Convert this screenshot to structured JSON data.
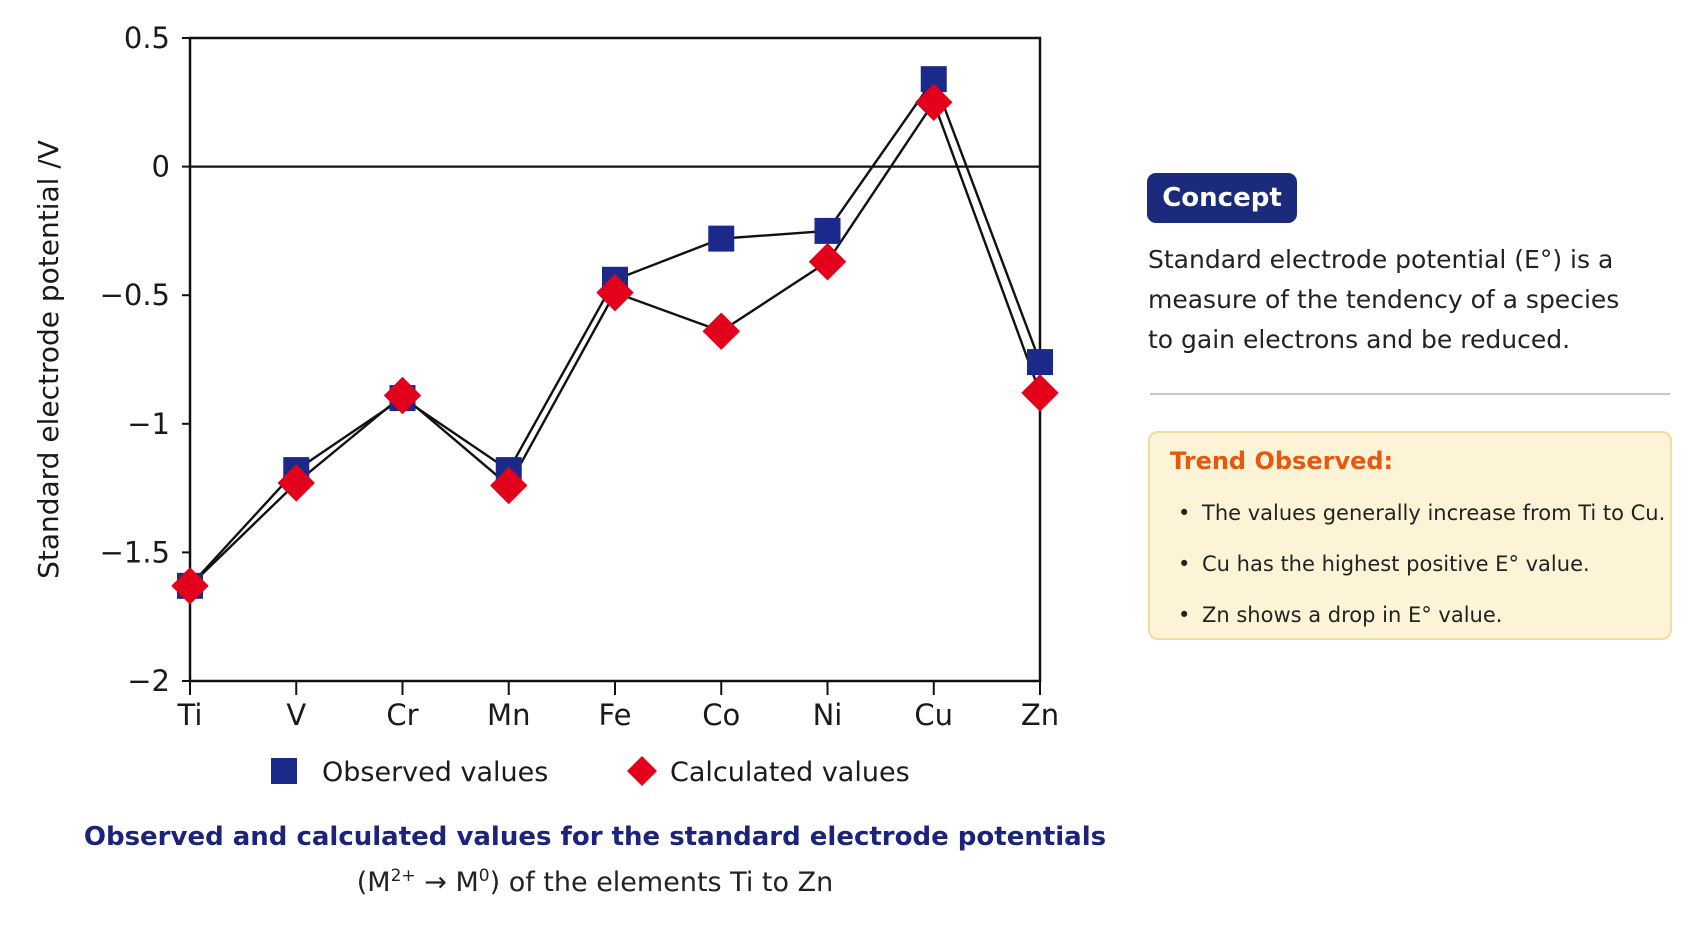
{
  "chart_data": {
    "type": "line",
    "categories": [
      "Ti",
      "V",
      "Cr",
      "Mn",
      "Fe",
      "Co",
      "Ni",
      "Cu",
      "Zn"
    ],
    "series": [
      {
        "name": "Observed values",
        "marker": "square",
        "color": "#1b2a8a",
        "values": [
          -1.63,
          -1.18,
          -0.9,
          -1.18,
          -0.44,
          -0.28,
          -0.25,
          0.34,
          -0.76
        ]
      },
      {
        "name": "Calculated values",
        "marker": "diamond",
        "color": "#e3001b",
        "values": [
          -1.63,
          -1.23,
          -0.89,
          -1.24,
          -0.49,
          -0.64,
          -0.37,
          0.25,
          -0.88
        ]
      }
    ],
    "ylabel": "Standard electrode potential /V",
    "xlabel": "",
    "ylim": [
      -2,
      0.5
    ],
    "yticks": [
      0.5,
      0,
      -0.5,
      -1,
      -1.5,
      -2
    ],
    "ytick_labels": [
      "0.5",
      "0",
      "−0.5",
      "−1",
      "−1.5",
      "−2"
    ],
    "zero_line": true,
    "grid": false,
    "legend_position": "bottom"
  },
  "caption": {
    "title": "Observed and calculated values for the standard electrode potentials",
    "subtitle_open": "(M",
    "subtitle_sup1": "2+",
    "subtitle_arrow": " → M",
    "subtitle_sup2": "0",
    "subtitle_rest": ") of the elements Ti to Zn"
  },
  "concept": {
    "badge": "Concept",
    "text": "Standard electrode potential (E°) is a measure of the tendency of a species to gain electrons and be reduced."
  },
  "trend": {
    "title": "Trend Observed:",
    "bullet": "•",
    "items": [
      "The values generally increase from Ti to Cu.",
      "Cu has the highest positive E° value.",
      "Zn shows a drop in E° value."
    ]
  }
}
